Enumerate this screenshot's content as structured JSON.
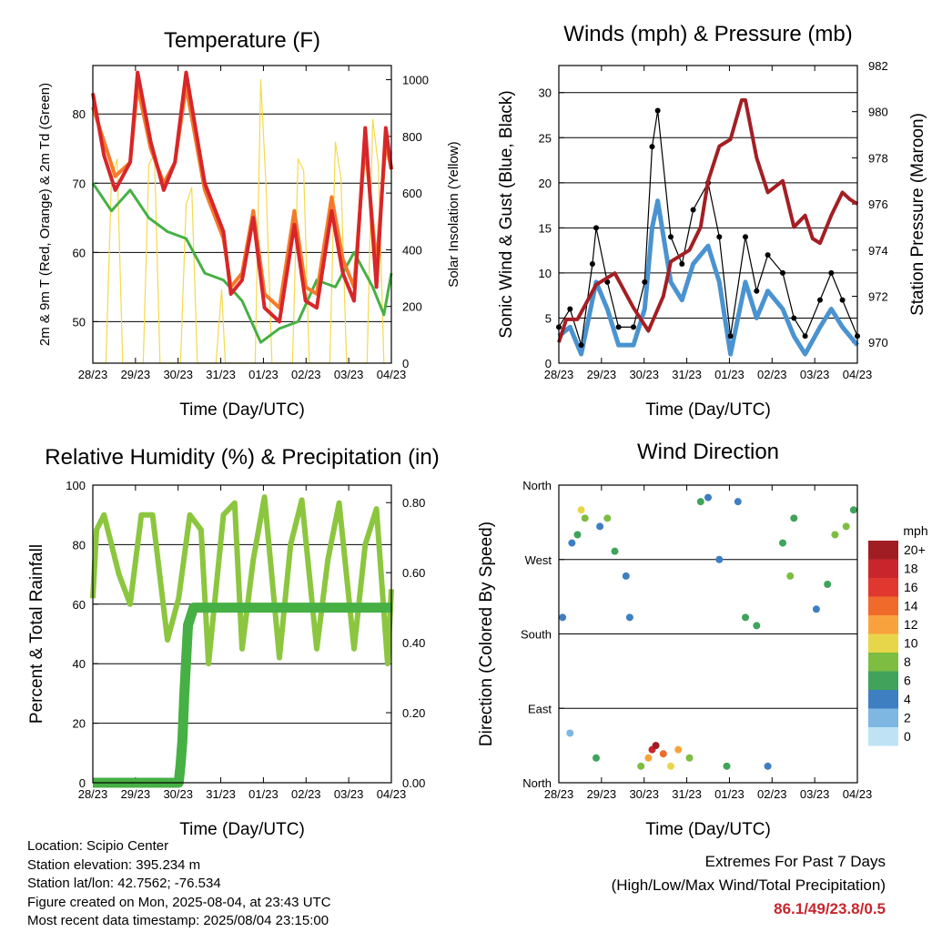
{
  "x_ticks": [
    "28/23",
    "29/23",
    "30/23",
    "31/23",
    "01/23",
    "02/23",
    "03/23",
    "04/23"
  ],
  "xlabel": "Time (Day/UTC)",
  "colors": {
    "temp_9m": "#d7262a",
    "temp_2m": "#f47a2a",
    "dewpoint": "#46b044",
    "solar": "#f5d94a",
    "gust": "#000000",
    "wind": "#4a93d0",
    "pressure": "#a31f24",
    "rh": "#8cc63f",
    "precip": "#46b044"
  },
  "chart_data": [
    {
      "type": "line",
      "title": "Temperature (F)",
      "xlabel": "Time (Day/UTC)",
      "ylabel": "2m & 9m T (Red, Orange) & 2m Td (Green)",
      "y2label": "Solar Insolation (Yellow)",
      "ylim": [
        44,
        87
      ],
      "y2lim": [
        0,
        1050
      ],
      "yticks": [
        50,
        60,
        70,
        80
      ],
      "y2ticks": [
        0,
        200,
        400,
        600,
        800,
        1000
      ],
      "grid": true,
      "series": [
        {
          "key": "temp_9m",
          "x": [
            0,
            0.3,
            0.6,
            1,
            1.2,
            1.55,
            1.9,
            2.2,
            2.5,
            3,
            3.5,
            3.7,
            4,
            4.3,
            4.6,
            5,
            5.4,
            5.7,
            6,
            6.4,
            6.7,
            7,
            7.3,
            7.6,
            7.85,
            8
          ],
          "y": [
            83,
            74,
            69,
            73,
            86,
            76,
            69,
            73,
            86,
            70,
            63,
            54,
            56,
            65,
            52,
            50,
            64,
            53,
            52,
            66,
            57,
            53,
            78,
            55,
            78,
            72
          ]
        },
        {
          "key": "temp_2m",
          "x": [
            0,
            0.3,
            0.6,
            1,
            1.2,
            1.55,
            1.9,
            2.2,
            2.5,
            3,
            3.5,
            3.7,
            4,
            4.3,
            4.6,
            5,
            5.4,
            5.7,
            6,
            6.4,
            6.7,
            7,
            7.3,
            7.6,
            7.85,
            8
          ],
          "y": [
            81,
            76,
            71,
            73,
            84,
            75,
            70,
            73,
            84,
            69,
            62,
            55,
            57,
            66,
            54,
            52,
            66,
            55,
            54,
            68,
            59,
            55,
            76,
            58,
            76,
            72
          ]
        },
        {
          "key": "dewpoint",
          "x": [
            0,
            0.5,
            1,
            1.5,
            2,
            2.5,
            3,
            3.5,
            4,
            4.5,
            5,
            5.5,
            6,
            6.5,
            7,
            7.5,
            7.8,
            8
          ],
          "y": [
            70,
            66,
            69,
            65,
            63,
            62,
            57,
            56,
            53,
            47,
            49,
            50,
            56,
            55,
            60,
            55,
            51,
            57
          ]
        },
        {
          "key": "solar",
          "x": [
            0,
            0.35,
            0.5,
            0.65,
            0.8,
            1.35,
            1.5,
            1.65,
            1.8,
            2.35,
            2.5,
            2.65,
            2.8,
            3.3,
            3.45,
            3.55,
            4.35,
            4.5,
            4.65,
            4.8,
            5.35,
            5.5,
            5.65,
            5.8,
            6.35,
            6.5,
            6.65,
            6.8,
            7.35,
            7.5,
            7.65,
            7.8
          ],
          "y": [
            0,
            0,
            650,
            720,
            0,
            0,
            700,
            740,
            0,
            0,
            560,
            620,
            0,
            0,
            260,
            0,
            0,
            1000,
            600,
            0,
            0,
            720,
            680,
            0,
            0,
            780,
            650,
            0,
            0,
            860,
            700,
            0
          ]
        }
      ]
    },
    {
      "type": "line",
      "title": "Winds (mph) & Pressure (mb)",
      "xlabel": "Time (Day/UTC)",
      "ylabel": "Sonic Wind & Gust (Blue, Black)",
      "y2label": "Station Pressure (Maroon)",
      "ylim": [
        0,
        33
      ],
      "y2lim": [
        969.1,
        982
      ],
      "yticks": [
        0,
        5,
        10,
        15,
        20,
        25,
        30
      ],
      "y2ticks": [
        970,
        972,
        974,
        976,
        978,
        980,
        982
      ],
      "grid": true,
      "series": [
        {
          "key": "gust",
          "x": [
            0,
            0.3,
            0.6,
            0.9,
            1,
            1.3,
            1.6,
            2,
            2.3,
            2.5,
            2.65,
            3,
            3.3,
            3.6,
            4,
            4.3,
            4.6,
            5,
            5.3,
            5.6,
            6,
            6.3,
            6.6,
            7,
            7.3,
            7.6,
            8
          ],
          "y": [
            4,
            6,
            2,
            11,
            15,
            9,
            4,
            4,
            9,
            24,
            28,
            14,
            11,
            17,
            20,
            14,
            3,
            14,
            8,
            12,
            10,
            5,
            3,
            7,
            10,
            7,
            3
          ]
        },
        {
          "key": "wind",
          "x": [
            0,
            0.3,
            0.6,
            0.9,
            1,
            1.3,
            1.6,
            2,
            2.3,
            2.5,
            2.65,
            3,
            3.3,
            3.6,
            4,
            4.3,
            4.6,
            5,
            5.3,
            5.6,
            6,
            6.3,
            6.6,
            7,
            7.3,
            7.6,
            8
          ],
          "y": [
            3,
            4,
            1,
            7,
            9,
            6,
            2,
            2,
            6,
            15,
            18,
            9,
            7,
            11,
            13,
            9,
            1,
            9,
            5,
            8,
            6,
            3,
            1,
            4,
            6,
            4,
            2
          ]
        },
        {
          "key": "pressure",
          "x": [
            0,
            0.2,
            0.5,
            1,
            1.5,
            2,
            2.4,
            2.8,
            3,
            3.5,
            3.8,
            4,
            4.3,
            4.6,
            4.9,
            5,
            5.3,
            5.6,
            6,
            6.3,
            6.6,
            6.8,
            7,
            7.3,
            7.6,
            7.8,
            8
          ],
          "y": [
            970,
            971,
            971,
            972.5,
            973,
            971.5,
            970.5,
            972,
            973.5,
            974,
            975,
            977,
            978.5,
            978.8,
            980.5,
            980.5,
            978,
            976.5,
            977,
            975,
            975.5,
            974.5,
            974.3,
            975.5,
            976.5,
            976.2,
            976
          ]
        }
      ]
    },
    {
      "type": "line",
      "title": "Relative Humidity (%) & Precipitation (in)",
      "xlabel": "Time (Day/UTC)",
      "ylabel": "Percent & Total Rainfall",
      "ylim": [
        0,
        100
      ],
      "y2lim": [
        0,
        0.85
      ],
      "yticks": [
        0,
        20,
        40,
        60,
        80,
        100
      ],
      "y2ticks": [
        "0.00",
        "0.20",
        "0.40",
        "0.60",
        "0.80"
      ],
      "grid": true,
      "series": [
        {
          "key": "rh",
          "x": [
            0,
            0.1,
            0.3,
            0.7,
            1,
            1.3,
            1.6,
            2,
            2.3,
            2.6,
            2.9,
            3.1,
            3.5,
            3.8,
            4,
            4.3,
            4.6,
            5,
            5.3,
            5.6,
            6,
            6.3,
            6.6,
            7,
            7.3,
            7.6,
            7.9,
            8
          ],
          "y": [
            62,
            85,
            90,
            70,
            60,
            90,
            90,
            48,
            62,
            90,
            85,
            40,
            90,
            94,
            45,
            75,
            96,
            42,
            80,
            95,
            45,
            75,
            94,
            45,
            80,
            92,
            40,
            65
          ]
        },
        {
          "key": "precip",
          "x": [
            0,
            2.3,
            2.35,
            2.4,
            2.45,
            2.5,
            2.55,
            2.7,
            3,
            8
          ],
          "y": [
            0,
            0,
            0.05,
            0.12,
            0.25,
            0.35,
            0.45,
            0.5,
            0.5,
            0.5
          ]
        }
      ]
    },
    {
      "type": "scatter",
      "title": "Wind Direction",
      "xlabel": "Time (Day/UTC)",
      "ylabel": "Direction (Colored By Speed)",
      "yticks": [
        "North",
        "East",
        "South",
        "West",
        "North"
      ],
      "colorbar_title": "mph",
      "colorbar_labels": [
        "20+",
        "18",
        "16",
        "14",
        "12",
        "10",
        "8",
        "6",
        "4",
        "2",
        "0"
      ],
      "colorbar_colors": [
        "#a01d24",
        "#c8262c",
        "#e0382e",
        "#f06a2c",
        "#f8a23e",
        "#e8d64a",
        "#7dbd42",
        "#3fa35b",
        "#3e7fc1",
        "#7db7e2",
        "#bfe3f5"
      ],
      "points": [
        {
          "day": 0.1,
          "dir": 200,
          "mph": 3
        },
        {
          "day": 0.3,
          "dir": 60,
          "mph": 2
        },
        {
          "day": 0.35,
          "dir": 290,
          "mph": 4
        },
        {
          "day": 0.5,
          "dir": 300,
          "mph": 5
        },
        {
          "day": 0.6,
          "dir": 330,
          "mph": 9
        },
        {
          "day": 0.7,
          "dir": 320,
          "mph": 8
        },
        {
          "day": 1.0,
          "dir": 30,
          "mph": 6
        },
        {
          "day": 1.1,
          "dir": 310,
          "mph": 4
        },
        {
          "day": 1.3,
          "dir": 320,
          "mph": 8
        },
        {
          "day": 1.5,
          "dir": 280,
          "mph": 6
        },
        {
          "day": 1.8,
          "dir": 250,
          "mph": 3
        },
        {
          "day": 1.9,
          "dir": 200,
          "mph": 3
        },
        {
          "day": 2.2,
          "dir": 20,
          "mph": 8
        },
        {
          "day": 2.4,
          "dir": 30,
          "mph": 12
        },
        {
          "day": 2.5,
          "dir": 40,
          "mph": 18
        },
        {
          "day": 2.6,
          "dir": 45,
          "mph": 20
        },
        {
          "day": 2.8,
          "dir": 35,
          "mph": 14
        },
        {
          "day": 3.0,
          "dir": 20,
          "mph": 10
        },
        {
          "day": 3.2,
          "dir": 40,
          "mph": 12
        },
        {
          "day": 3.5,
          "dir": 30,
          "mph": 8
        },
        {
          "day": 3.8,
          "dir": 340,
          "mph": 5
        },
        {
          "day": 4.0,
          "dir": 345,
          "mph": 4
        },
        {
          "day": 4.3,
          "dir": 270,
          "mph": 3
        },
        {
          "day": 4.5,
          "dir": 20,
          "mph": 6
        },
        {
          "day": 4.8,
          "dir": 340,
          "mph": 3
        },
        {
          "day": 5.0,
          "dir": 200,
          "mph": 5
        },
        {
          "day": 5.3,
          "dir": 190,
          "mph": 6
        },
        {
          "day": 5.6,
          "dir": 20,
          "mph": 3
        },
        {
          "day": 6.0,
          "dir": 290,
          "mph": 6
        },
        {
          "day": 6.2,
          "dir": 250,
          "mph": 7
        },
        {
          "day": 6.3,
          "dir": 320,
          "mph": 6
        },
        {
          "day": 6.9,
          "dir": 210,
          "mph": 4
        },
        {
          "day": 7.2,
          "dir": 240,
          "mph": 6
        },
        {
          "day": 7.4,
          "dir": 300,
          "mph": 7
        },
        {
          "day": 7.7,
          "dir": 310,
          "mph": 8
        },
        {
          "day": 7.9,
          "dir": 330,
          "mph": 5
        }
      ]
    }
  ],
  "info": {
    "location": "Location: Scipio Center",
    "elevation": "Station elevation: 395.234 m",
    "latlon": "Station lat/lon: 42.7562; -76.534",
    "created": "Figure created on Mon, 2025-08-04, at 23:43 UTC",
    "recent": "Most recent data timestamp: 2025/08/04 23:15:00"
  },
  "extremes": {
    "title": "Extremes For Past 7 Days",
    "subtitle": "(High/Low/Max Wind/Total Precipitation)",
    "value": "86.1/49/23.8/0.5"
  }
}
